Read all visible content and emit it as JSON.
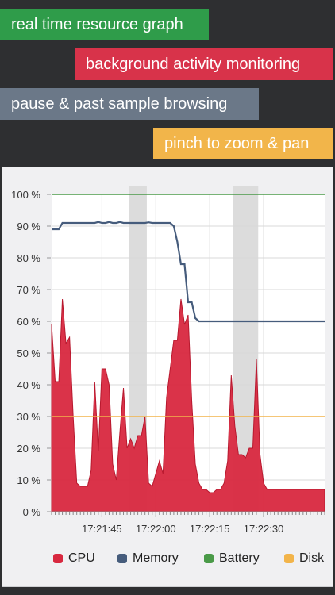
{
  "banners": {
    "realtime": "real time resource graph",
    "background": "background activity monitoring",
    "pause": "pause & past sample browsing",
    "pinch": "pinch to zoom & pan"
  },
  "colors": {
    "realtime": "#2f9c4a",
    "background": "#d8334a",
    "pause": "#6b7888",
    "pinch": "#f2b54a",
    "cpu": "#d8283f",
    "memory": "#465c7c",
    "battery": "#4a9a48",
    "disk": "#f2b44a"
  },
  "chart_data": {
    "type": "area",
    "y_ticks": [
      "0 %",
      "10 %",
      "20 %",
      "30 %",
      "40 %",
      "50 %",
      "60 %",
      "70 %",
      "80 %",
      "90 %",
      "100 %"
    ],
    "ylim": [
      0,
      100
    ],
    "x_ticks": [
      "17:21:45",
      "17:22:00",
      "17:22:15",
      "17:22:30"
    ],
    "x_tick_times": [
      45,
      60,
      75,
      90
    ],
    "xlim": [
      31,
      107
    ],
    "highlight_ranges": [
      [
        52.5,
        57.5
      ],
      [
        81.5,
        88.5
      ]
    ],
    "series": [
      {
        "name": "CPU",
        "type": "area",
        "x": [
          31,
          32,
          33,
          34,
          35,
          36,
          37,
          38,
          39,
          40,
          41,
          42,
          43,
          44,
          45,
          46,
          47,
          48,
          49,
          50,
          51,
          52,
          53,
          54,
          55,
          56,
          57,
          58,
          59,
          60,
          61,
          62,
          63,
          64,
          65,
          66,
          67,
          68,
          69,
          70,
          71,
          72,
          73,
          74,
          75,
          76,
          77,
          78,
          79,
          80,
          81,
          82,
          83,
          84,
          85,
          86,
          87,
          88,
          89,
          90,
          91,
          92,
          93,
          94,
          95,
          96,
          97,
          98,
          99,
          100,
          101,
          102,
          103,
          104,
          105,
          106,
          107
        ],
        "values": [
          59,
          41,
          41,
          67,
          53,
          55,
          30,
          9,
          8,
          8,
          8,
          13,
          41,
          19,
          45,
          45,
          40,
          15,
          10,
          25,
          39,
          20,
          23,
          20,
          24,
          24,
          30,
          9,
          8,
          12,
          16,
          12,
          36,
          45,
          54,
          54,
          67,
          59,
          62,
          35,
          15,
          9,
          7,
          7,
          6,
          6,
          7,
          7,
          9,
          16,
          43,
          27,
          18,
          18,
          17,
          20,
          20,
          48,
          18,
          9,
          7,
          7,
          7,
          7,
          7,
          7,
          7,
          7,
          7,
          7,
          7,
          7,
          7,
          7,
          7,
          7,
          7
        ]
      },
      {
        "name": "Memory",
        "type": "line",
        "x": [
          31,
          32,
          33,
          34,
          35,
          36,
          37,
          38,
          39,
          40,
          41,
          42,
          43,
          44,
          45,
          46,
          47,
          48,
          49,
          50,
          51,
          52,
          53,
          54,
          55,
          56,
          57,
          58,
          59,
          60,
          61,
          62,
          63,
          64,
          65,
          66,
          67,
          68,
          69,
          70,
          71,
          72,
          73,
          74,
          75,
          76,
          77,
          78,
          79,
          80,
          81,
          82,
          83,
          84,
          85,
          86,
          87,
          88,
          89,
          90,
          91,
          92,
          93,
          94,
          95,
          96,
          97,
          98,
          99,
          100,
          101,
          102,
          103,
          104,
          105,
          106,
          107
        ],
        "values": [
          89,
          89,
          89,
          91,
          91,
          91,
          91,
          91,
          91,
          91,
          91,
          91,
          91,
          91.3,
          91,
          91,
          91.3,
          91,
          91,
          91.3,
          91,
          91,
          91,
          91,
          91,
          91,
          91,
          91.2,
          91,
          91,
          91,
          91,
          91,
          91,
          90,
          85,
          78,
          78,
          66,
          66,
          61,
          60,
          60,
          60,
          60,
          60,
          60,
          60,
          60,
          60,
          60,
          60,
          60,
          60,
          60,
          60,
          60,
          60,
          60,
          60,
          60,
          60,
          60,
          60,
          60,
          60,
          60,
          60,
          60,
          60,
          60,
          60,
          60,
          60,
          60,
          60,
          60
        ]
      },
      {
        "name": "Battery",
        "type": "line",
        "constant": 100
      },
      {
        "name": "Disk",
        "type": "line",
        "constant": 30
      }
    ],
    "legend": [
      "CPU",
      "Memory",
      "Battery",
      "Disk"
    ],
    "legend_position": "bottom",
    "grid": true
  }
}
